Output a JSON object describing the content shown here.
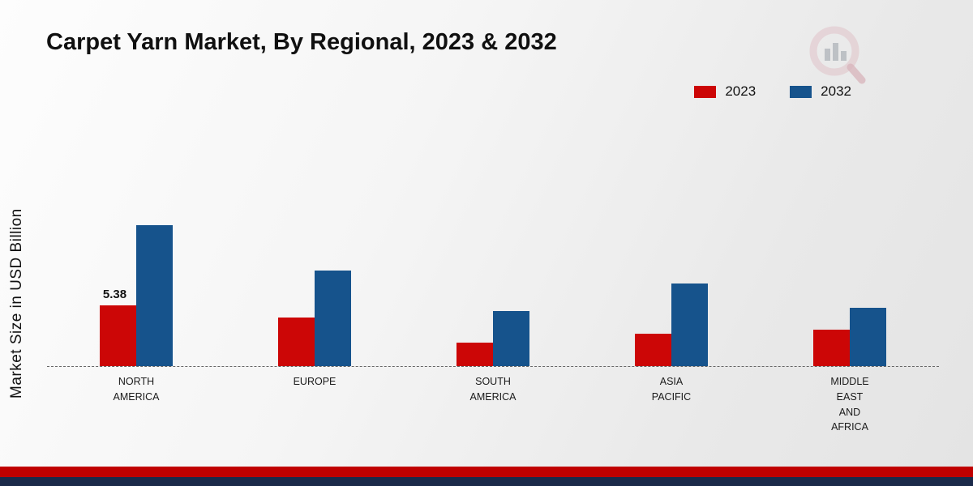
{
  "title": "Carpet Yarn Market, By Regional, 2023 & 2032",
  "ylabel": "Market Size in USD Billion",
  "colors": {
    "bar_2023": "#cc0606",
    "bar_2032": "#16538c",
    "footer_red": "#c00000",
    "footer_navy": "#1b2a4a",
    "baseline": "#666666"
  },
  "logo": {
    "name": "brand-logo-icon"
  },
  "chart_data": {
    "type": "bar",
    "title": "Carpet Yarn Market, By Regional, 2023 & 2032",
    "xlabel": "",
    "ylabel": "Market Size in USD Billion",
    "ylim": [
      0,
      13
    ],
    "grid": false,
    "legend_position": "top-right",
    "baseline_style": "dashed",
    "categories": [
      "NORTH AMERICA",
      "EUROPE",
      "SOUTH AMERICA",
      "ASIA PACIFIC",
      "MIDDLE EAST AND AFRICA"
    ],
    "category_labels": [
      "NORTH\nAMERICA",
      "EUROPE",
      "SOUTH\nAMERICA",
      "ASIA\nPACIFIC",
      "MIDDLE\nEAST\nAND\nAFRICA"
    ],
    "series": [
      {
        "name": "2023",
        "color": "#cc0606",
        "values": [
          5.38,
          4.3,
          2.1,
          2.9,
          3.2
        ],
        "value_labels": [
          "5.38",
          "",
          "",
          "",
          ""
        ]
      },
      {
        "name": "2032",
        "color": "#16538c",
        "values": [
          12.5,
          8.5,
          4.9,
          7.3,
          5.2
        ],
        "value_labels": [
          "",
          "",
          "",
          "",
          ""
        ]
      }
    ]
  }
}
